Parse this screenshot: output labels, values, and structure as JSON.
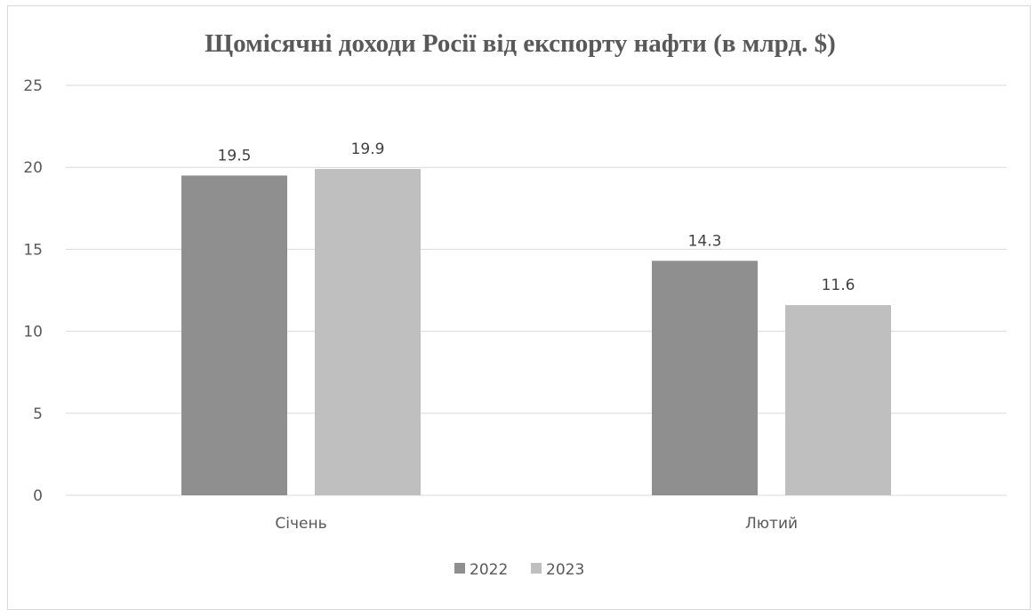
{
  "chart_data": {
    "type": "bar",
    "title": "Щомісячні доходи Росії від експорту нафти (в млрд. $)",
    "xlabel": "",
    "ylabel": "",
    "categories": [
      "Січень",
      "Лютий"
    ],
    "series": [
      {
        "name": "2022",
        "values": [
          19.5,
          14.3
        ],
        "color": "#8f8f8f"
      },
      {
        "name": "2023",
        "values": [
          19.9,
          11.6
        ],
        "color": "#bfbfbf"
      }
    ],
    "ylim": [
      0,
      25
    ],
    "yticks": [
      0,
      5,
      10,
      15,
      20,
      25
    ],
    "grid": true,
    "legend_position": "bottom",
    "gridline_color": "#d9d9d9"
  }
}
